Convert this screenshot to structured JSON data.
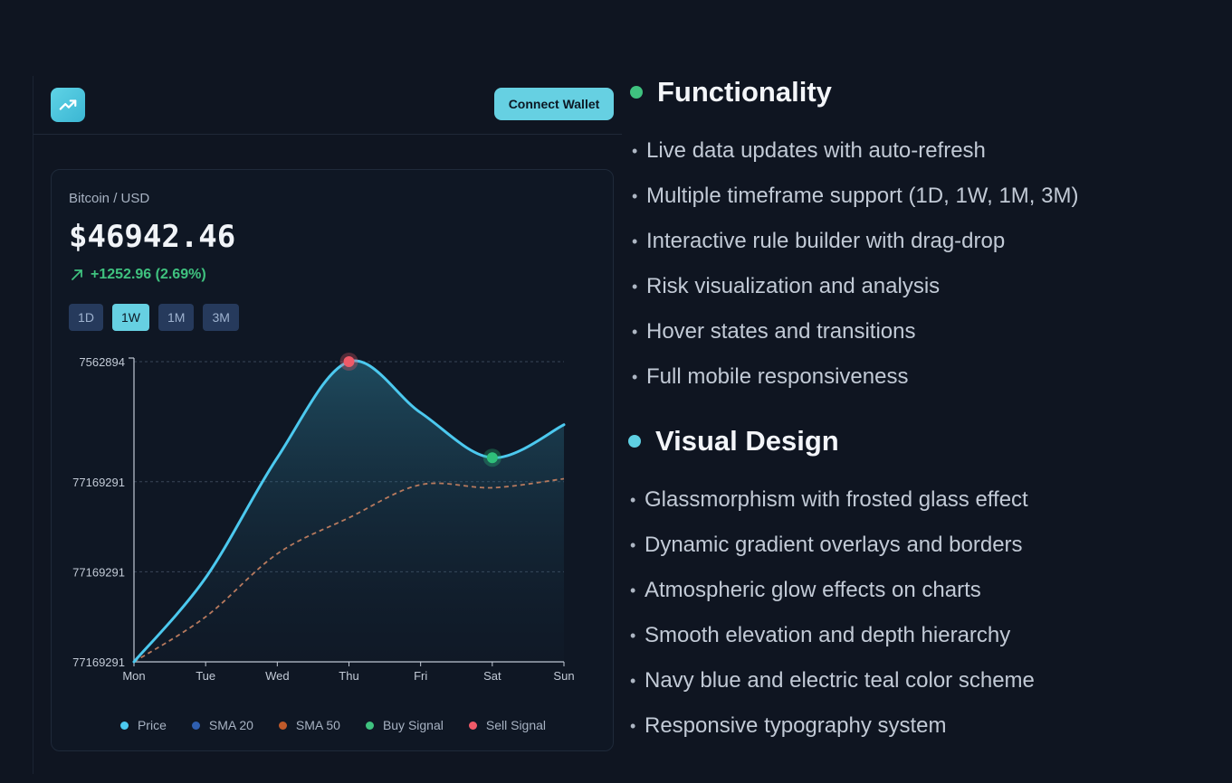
{
  "header": {
    "logo_icon": "trending-up-icon",
    "connect_label": "Connect Wallet"
  },
  "ticker": {
    "pair": "Bitcoin / USD",
    "price": "$46942.46",
    "change": "+1252.96 (2.69%)",
    "change_icon": "arrow-up-right-icon"
  },
  "timeframes": [
    {
      "label": "1D",
      "active": false
    },
    {
      "label": "1W",
      "active": true
    },
    {
      "label": "1M",
      "active": false
    },
    {
      "label": "3M",
      "active": false
    }
  ],
  "chart_data": {
    "type": "line",
    "x": [
      "Mon",
      "Tue",
      "Wed",
      "Thu",
      "Fri",
      "Sat",
      "Sun"
    ],
    "y_tick_labels": [
      "7562894",
      "77169291",
      "77169291",
      "77169291"
    ],
    "ylim": [
      0,
      100
    ],
    "series": [
      {
        "name": "Price",
        "color": "#4cc9ef",
        "values": [
          0,
          28,
          68,
          100,
          83,
          68,
          79
        ]
      },
      {
        "name": "SMA 50",
        "color": "#b87a5e",
        "dashed": true,
        "values": [
          0,
          15,
          36,
          48,
          59,
          58,
          61
        ]
      }
    ],
    "signals": [
      {
        "name": "Sell Signal",
        "x": "Thu",
        "y": 100,
        "color": "#f05a68"
      },
      {
        "name": "Buy Signal",
        "x": "Sat",
        "y": 68,
        "color": "#2fbf7a"
      }
    ],
    "legend": [
      {
        "label": "Price",
        "color": "#4cc9ef"
      },
      {
        "label": "SMA 20",
        "color": "#2f5fb0"
      },
      {
        "label": "SMA 50",
        "color": "#c05a2a"
      },
      {
        "label": "Buy Signal",
        "color": "#3fc27f"
      },
      {
        "label": "Sell Signal",
        "color": "#f05a68"
      }
    ],
    "legend_position": "bottom",
    "grid": true
  },
  "features": {
    "functionality": {
      "title": "Functionality",
      "dot_color": "#3fc27f",
      "items": [
        "Live data updates with auto-refresh",
        "Multiple timeframe support (1D, 1W, 1M, 3M)",
        "Interactive rule builder with drag-drop",
        "Risk visualization and analysis",
        "Hover states and transitions",
        "Full mobile responsiveness"
      ]
    },
    "visual_design": {
      "title": "Visual Design",
      "dot_color": "#5fd0e3",
      "items": [
        "Glassmorphism with frosted glass effect",
        "Dynamic gradient overlays and borders",
        "Atmospheric glow effects on charts",
        "Smooth elevation and depth hierarchy",
        "Navy blue and electric teal color scheme",
        "Responsive typography system"
      ]
    }
  }
}
